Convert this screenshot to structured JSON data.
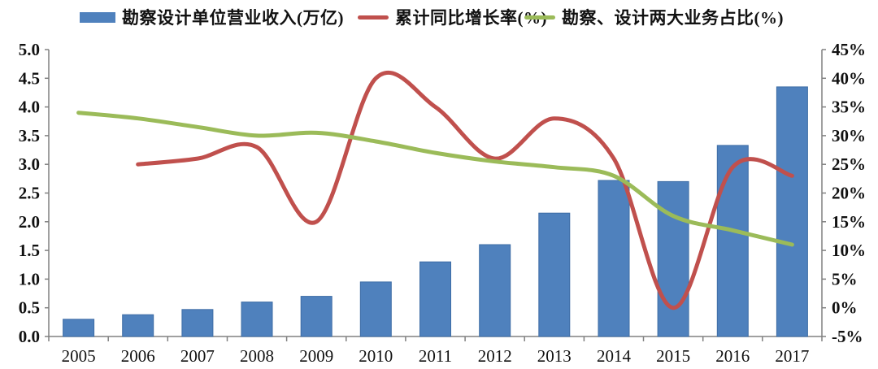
{
  "chart_data": {
    "type": "combo",
    "title": "",
    "categories": [
      "2005",
      "2006",
      "2007",
      "2008",
      "2009",
      "2010",
      "2011",
      "2012",
      "2013",
      "2014",
      "2015",
      "2016",
      "2017"
    ],
    "series": [
      {
        "name": "勘察设计单位营业收入(万亿)",
        "type": "bar",
        "axis": "left",
        "color": "#4F81BD",
        "values": [
          0.3,
          0.38,
          0.47,
          0.6,
          0.7,
          0.95,
          1.3,
          1.6,
          2.15,
          2.72,
          2.7,
          3.33,
          4.35
        ]
      },
      {
        "name": "累计同比增长率(%)",
        "type": "line",
        "axis": "right",
        "color": "#C0504D",
        "values": [
          null,
          25,
          26,
          28,
          15,
          40,
          35,
          26,
          33,
          26,
          0,
          24.5,
          23
        ]
      },
      {
        "name": "勘察、设计两大业务占比(%)",
        "type": "line",
        "axis": "right",
        "color": "#9BBB59",
        "values": [
          34,
          33,
          31.5,
          30,
          30.5,
          29,
          27,
          25.5,
          24.5,
          23,
          16,
          13.5,
          11
        ]
      }
    ],
    "left_axis": {
      "min": 0,
      "max": 5,
      "tick_labels": [
        "0.0",
        "0.5",
        "1.0",
        "1.5",
        "2.0",
        "2.5",
        "3.0",
        "3.5",
        "4.0",
        "4.5",
        "5.0"
      ]
    },
    "right_axis": {
      "min": -5,
      "max": 45,
      "tick_labels": [
        "-5%",
        "0%",
        "5%",
        "10%",
        "15%",
        "20%",
        "25%",
        "30%",
        "35%",
        "40%",
        "45%"
      ]
    },
    "x_axis": {
      "tick_labels": [
        "2005",
        "2006",
        "2007",
        "2008",
        "2009",
        "2010",
        "2011",
        "2012",
        "2013",
        "2014",
        "2015",
        "2016",
        "2017"
      ]
    },
    "legend_position": "top",
    "grid": false,
    "axis_color": "#808080",
    "text_color": "#111111"
  }
}
